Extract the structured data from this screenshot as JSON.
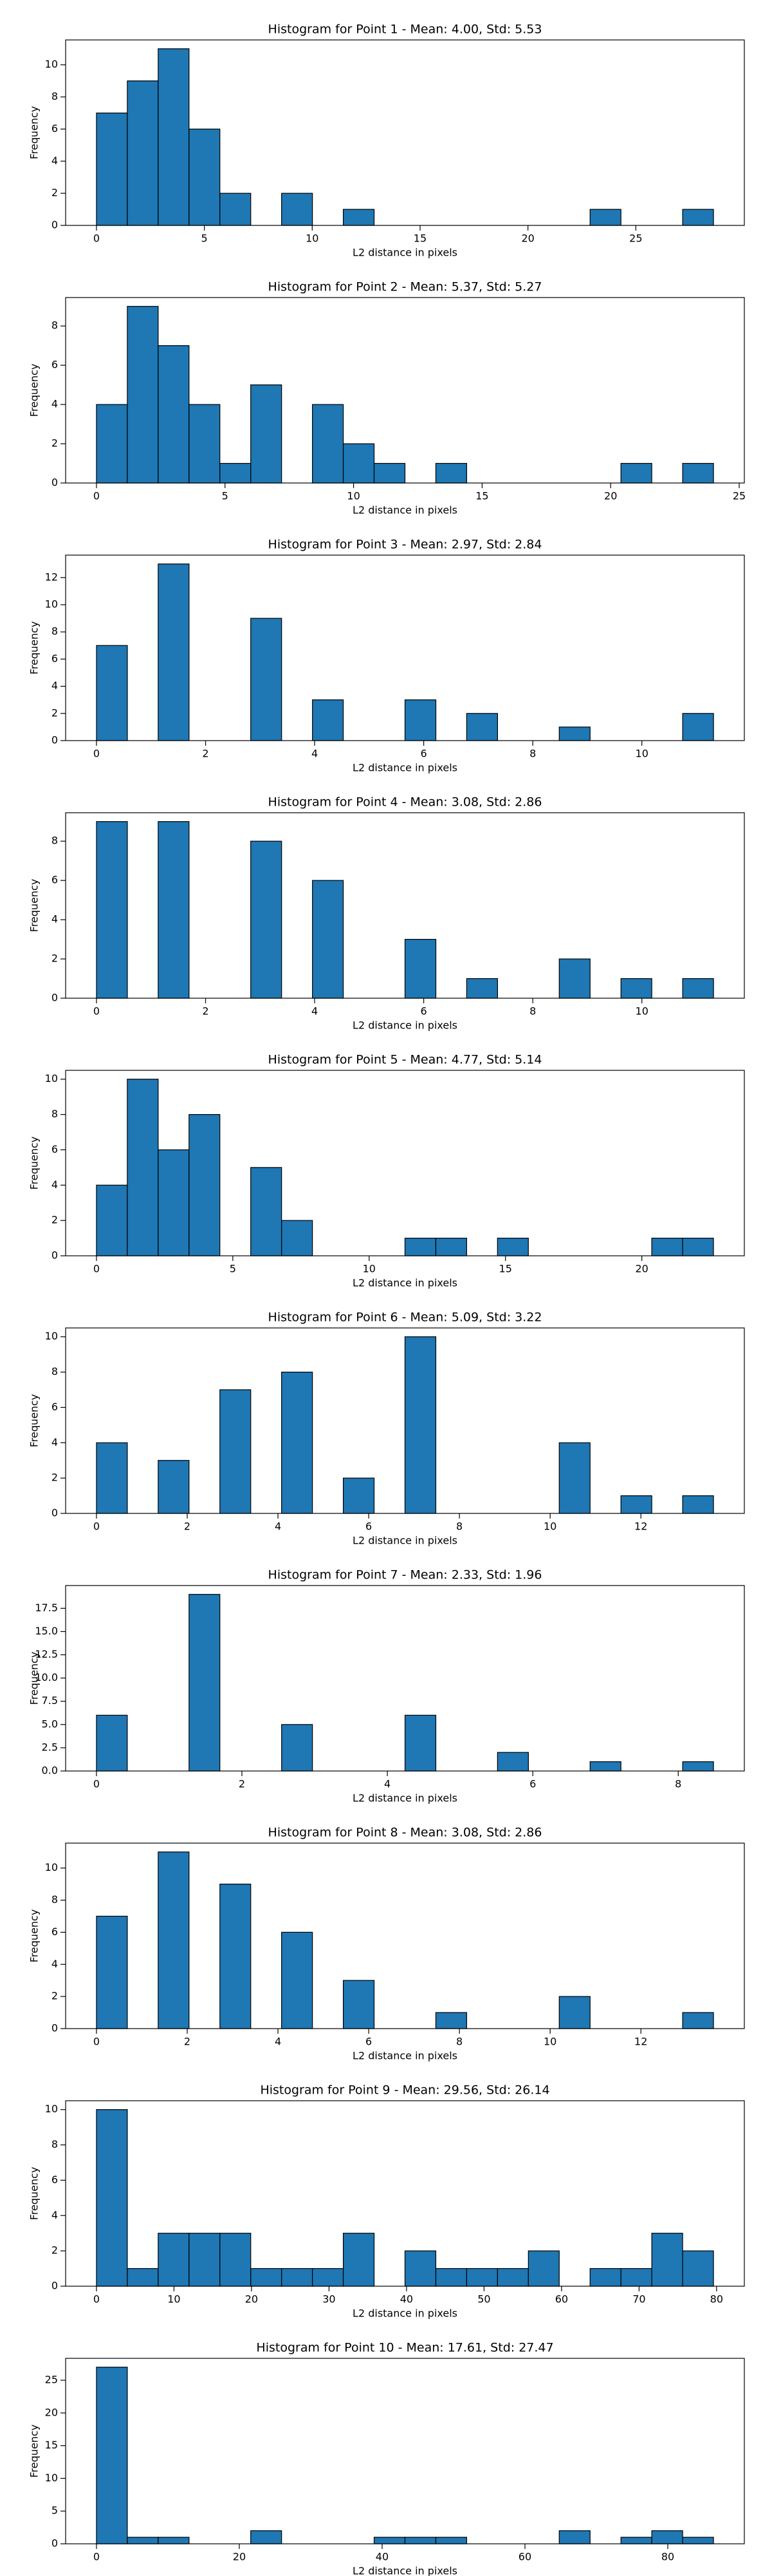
{
  "chart_data": [
    {
      "type": "histogram",
      "title": "Histogram for Point 1 - Mean: 4.00, Std: 5.53",
      "xlabel": "L2 distance in pixels",
      "ylabel": "Frequency",
      "color": "#1f77b4",
      "bins": [
        0,
        1.43,
        2.86,
        4.29,
        5.72,
        7.15,
        8.58,
        10.01,
        11.44,
        12.87,
        14.3,
        15.73,
        17.16,
        18.59,
        20.02,
        21.45,
        22.88,
        24.31,
        25.74,
        27.17,
        28.6
      ],
      "values": [
        7,
        9,
        11,
        6,
        2,
        0,
        2,
        0,
        1,
        0,
        0,
        0,
        0,
        0,
        0,
        0,
        1,
        0,
        0,
        1
      ],
      "xlim": [
        -1.43,
        30.03
      ],
      "ylim": [
        0,
        11.55
      ],
      "xticks": [
        0,
        5,
        10,
        15,
        20,
        25
      ],
      "yticks": [
        0,
        2,
        4,
        6,
        8,
        10
      ]
    },
    {
      "type": "histogram",
      "title": "Histogram for Point 2 - Mean: 5.37, Std: 5.27",
      "xlabel": "L2 distance in pixels",
      "ylabel": "Frequency",
      "color": "#1f77b4",
      "bins": [
        0,
        1.2,
        2.4,
        3.6,
        4.8,
        6,
        7.2,
        8.4,
        9.6,
        10.8,
        12,
        13.2,
        14.4,
        15.6,
        16.8,
        18,
        19.2,
        20.4,
        21.6,
        22.8,
        24
      ],
      "values": [
        4,
        9,
        7,
        4,
        1,
        5,
        0,
        4,
        2,
        1,
        0,
        1,
        0,
        0,
        0,
        0,
        0,
        1,
        0,
        1
      ],
      "xlim": [
        -1.2,
        25.2
      ],
      "ylim": [
        0,
        9.45
      ],
      "xticks": [
        0,
        5,
        10,
        15,
        20,
        25
      ],
      "yticks": [
        0,
        2,
        4,
        6,
        8
      ]
    },
    {
      "type": "histogram",
      "title": "Histogram for Point 3 - Mean: 2.97, Std: 2.84",
      "xlabel": "L2 distance in pixels",
      "ylabel": "Frequency",
      "color": "#1f77b4",
      "bins": [
        0,
        0.566,
        1.131,
        1.697,
        2.263,
        2.828,
        3.394,
        3.96,
        4.525,
        5.091,
        5.657,
        6.223,
        6.788,
        7.354,
        7.92,
        8.485,
        9.051,
        9.617,
        10.182,
        10.748,
        11.314
      ],
      "values": [
        7,
        0,
        13,
        0,
        0,
        9,
        0,
        3,
        0,
        0,
        3,
        0,
        2,
        0,
        0,
        1,
        0,
        0,
        0,
        2
      ],
      "xlim": [
        -0.566,
        11.879
      ],
      "ylim": [
        0,
        13.65
      ],
      "xticks": [
        0,
        2,
        4,
        6,
        8,
        10
      ],
      "yticks": [
        0,
        2,
        4,
        6,
        8,
        10,
        12
      ]
    },
    {
      "type": "histogram",
      "title": "Histogram for Point 4 - Mean: 3.08, Std: 2.86",
      "xlabel": "L2 distance in pixels",
      "ylabel": "Frequency",
      "color": "#1f77b4",
      "bins": [
        0,
        0.566,
        1.131,
        1.697,
        2.263,
        2.828,
        3.394,
        3.96,
        4.525,
        5.091,
        5.657,
        6.223,
        6.788,
        7.354,
        7.92,
        8.485,
        9.051,
        9.617,
        10.182,
        10.748,
        11.314
      ],
      "values": [
        9,
        0,
        9,
        0,
        0,
        8,
        0,
        6,
        0,
        0,
        3,
        0,
        1,
        0,
        0,
        2,
        0,
        1,
        0,
        1
      ],
      "xlim": [
        -0.566,
        11.879
      ],
      "ylim": [
        0,
        9.45
      ],
      "xticks": [
        0,
        2,
        4,
        6,
        8,
        10
      ],
      "yticks": [
        0,
        2,
        4,
        6,
        8
      ]
    },
    {
      "type": "histogram",
      "title": "Histogram for Point 5 - Mean: 4.77, Std: 5.14",
      "xlabel": "L2 distance in pixels",
      "ylabel": "Frequency",
      "color": "#1f77b4",
      "bins": [
        0,
        1.131,
        2.263,
        3.394,
        4.525,
        5.657,
        6.788,
        7.92,
        9.051,
        10.182,
        11.314,
        12.445,
        13.576,
        14.707,
        15.839,
        16.97,
        18.102,
        19.233,
        20.364,
        21.496,
        22.627
      ],
      "values": [
        4,
        10,
        6,
        8,
        0,
        5,
        2,
        0,
        0,
        0,
        1,
        1,
        0,
        1,
        0,
        0,
        0,
        0,
        1,
        1
      ],
      "xlim": [
        -1.131,
        23.759
      ],
      "ylim": [
        0,
        10.5
      ],
      "xticks": [
        0,
        5,
        10,
        15,
        20
      ],
      "yticks": [
        0,
        2,
        4,
        6,
        8,
        10
      ]
    },
    {
      "type": "histogram",
      "title": "Histogram for Point 6 - Mean: 5.09, Std: 3.22",
      "xlabel": "L2 distance in pixels",
      "ylabel": "Frequency",
      "color": "#1f77b4",
      "bins": [
        0,
        0.68,
        1.36,
        2.04,
        2.72,
        3.4,
        4.08,
        4.76,
        5.44,
        6.12,
        6.8,
        7.48,
        8.16,
        8.84,
        9.52,
        10.2,
        10.88,
        11.56,
        12.24,
        12.92,
        13.6
      ],
      "values": [
        4,
        0,
        3,
        0,
        7,
        0,
        8,
        0,
        2,
        0,
        10,
        0,
        0,
        0,
        0,
        4,
        0,
        1,
        0,
        1
      ],
      "xlim": [
        -0.68,
        14.28
      ],
      "ylim": [
        0,
        10.5
      ],
      "xticks": [
        0,
        2,
        4,
        6,
        8,
        10,
        12
      ],
      "yticks": [
        0,
        2,
        4,
        6,
        8,
        10
      ]
    },
    {
      "type": "histogram",
      "title": "Histogram for Point 7 - Mean: 2.33, Std: 1.96",
      "xlabel": "L2 distance in pixels",
      "ylabel": "Frequency",
      "color": "#1f77b4",
      "bins": [
        0,
        0.424,
        0.849,
        1.273,
        1.697,
        2.121,
        2.546,
        2.97,
        3.394,
        3.818,
        4.243,
        4.667,
        5.091,
        5.515,
        5.94,
        6.364,
        6.788,
        7.212,
        7.637,
        8.061,
        8.485
      ],
      "values": [
        6,
        0,
        0,
        19,
        0,
        0,
        5,
        0,
        0,
        0,
        6,
        0,
        0,
        2,
        0,
        0,
        1,
        0,
        0,
        1
      ],
      "xlim": [
        -0.424,
        8.909
      ],
      "ylim": [
        0,
        19.95
      ],
      "xticks": [
        0,
        2,
        4,
        6,
        8
      ],
      "yticks": [
        {
          "value": 0,
          "label": "0.0"
        },
        {
          "value": 2.5,
          "label": "2.5"
        },
        {
          "value": 5,
          "label": "5.0"
        },
        {
          "value": 7.5,
          "label": "7.5"
        },
        {
          "value": 10,
          "label": "10.0"
        },
        {
          "value": 12.5,
          "label": "12.5"
        },
        {
          "value": 15,
          "label": "15.0"
        },
        {
          "value": 17.5,
          "label": "17.5"
        }
      ]
    },
    {
      "type": "histogram",
      "title": "Histogram for Point 8 - Mean: 3.08, Std: 2.86",
      "xlabel": "L2 distance in pixels",
      "ylabel": "Frequency",
      "color": "#1f77b4",
      "bins": [
        0,
        0.68,
        1.36,
        2.04,
        2.72,
        3.4,
        4.08,
        4.76,
        5.44,
        6.12,
        6.8,
        7.48,
        8.16,
        8.84,
        9.52,
        10.2,
        10.88,
        11.56,
        12.24,
        12.92,
        13.6
      ],
      "values": [
        7,
        0,
        11,
        0,
        9,
        0,
        6,
        0,
        3,
        0,
        0,
        1,
        0,
        0,
        0,
        2,
        0,
        0,
        0,
        1
      ],
      "xlim": [
        -0.68,
        14.28
      ],
      "ylim": [
        0,
        11.55
      ],
      "xticks": [
        0,
        2,
        4,
        6,
        8,
        10,
        12
      ],
      "yticks": [
        0,
        2,
        4,
        6,
        8,
        10
      ]
    },
    {
      "type": "histogram",
      "title": "Histogram for Point 9 - Mean: 29.56, Std: 26.14",
      "xlabel": "L2 distance in pixels",
      "ylabel": "Frequency",
      "color": "#1f77b4",
      "bins": [
        0,
        3.98,
        7.96,
        11.94,
        15.92,
        19.9,
        23.88,
        27.86,
        31.84,
        35.82,
        39.8,
        43.78,
        47.76,
        51.74,
        55.72,
        59.7,
        63.68,
        67.66,
        71.64,
        75.62,
        79.6
      ],
      "values": [
        10,
        1,
        3,
        3,
        3,
        1,
        1,
        1,
        3,
        0,
        2,
        1,
        1,
        1,
        2,
        0,
        1,
        1,
        3,
        2
      ],
      "xlim": [
        -3.98,
        83.58
      ],
      "ylim": [
        0,
        10.5
      ],
      "xticks": [
        0,
        10,
        20,
        30,
        40,
        50,
        60,
        70,
        80
      ],
      "yticks": [
        0,
        2,
        4,
        6,
        8,
        10
      ]
    },
    {
      "type": "histogram",
      "title": "Histogram for Point 10 - Mean: 17.61, Std: 27.47",
      "xlabel": "L2 distance in pixels",
      "ylabel": "Frequency",
      "color": "#1f77b4",
      "bins": [
        0,
        4.32,
        8.64,
        12.96,
        17.28,
        21.6,
        25.92,
        30.24,
        34.56,
        38.88,
        43.2,
        47.52,
        51.84,
        56.16,
        60.48,
        64.8,
        69.12,
        73.44,
        77.76,
        82.08,
        86.4
      ],
      "values": [
        27,
        1,
        1,
        0,
        0,
        2,
        0,
        0,
        0,
        1,
        1,
        1,
        0,
        0,
        0,
        2,
        0,
        1,
        2,
        1
      ],
      "xlim": [
        -4.32,
        90.72
      ],
      "ylim": [
        0,
        28.35
      ],
      "xticks": [
        0,
        20,
        40,
        60,
        80
      ],
      "yticks": [
        0,
        5,
        10,
        15,
        20,
        25
      ]
    }
  ]
}
